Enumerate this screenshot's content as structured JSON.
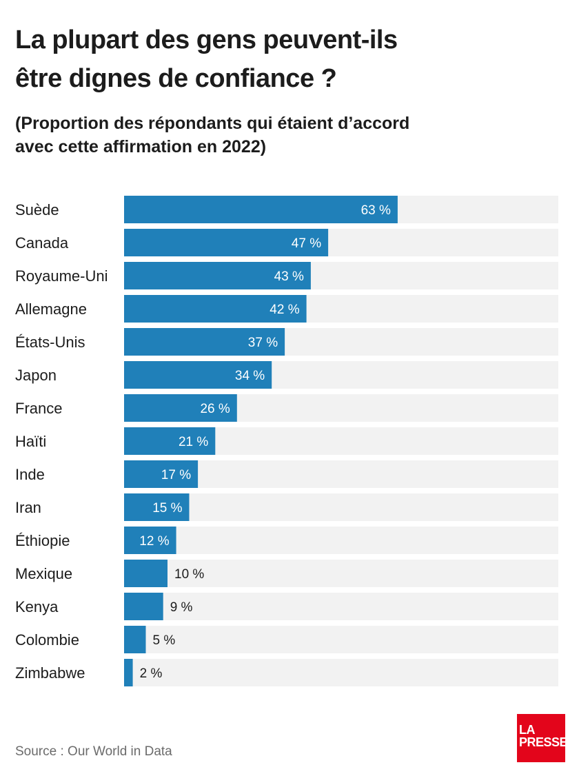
{
  "header": {
    "title_line1": "La plupart des gens peuvent-ils",
    "title_line2": "être dignes de confiance ?",
    "subtitle_line1": "(Proportion des répondants qui étaient d’accord",
    "subtitle_line2": "avec cette affirmation en 2022)"
  },
  "footer": {
    "source": "Source : Our World in Data",
    "logo_line1": "LA",
    "logo_line2": "PRESSE"
  },
  "colors": {
    "bar": "#2080b9",
    "track": "#f2f2f2",
    "logo": "#e3051b"
  },
  "chart_data": {
    "type": "bar",
    "orientation": "horizontal",
    "title": "La plupart des gens peuvent-ils être dignes de confiance ?",
    "subtitle": "(Proportion des répondants qui étaient d’accord avec cette affirmation en 2022)",
    "categories": [
      "Suède",
      "Canada",
      "Royaume-Uni",
      "Allemagne",
      "États-Unis",
      "Japon",
      "France",
      "Haïti",
      "Inde",
      "Iran",
      "Éthiopie",
      "Mexique",
      "Kenya",
      "Colombie",
      "Zimbabwe"
    ],
    "values": [
      63,
      47,
      43,
      42,
      37,
      34,
      26,
      21,
      17,
      15,
      12,
      10,
      9,
      5,
      2
    ],
    "value_labels": [
      "63 %",
      "47 %",
      "43 %",
      "42 %",
      "37 %",
      "34 %",
      "26 %",
      "21 %",
      "17 %",
      "15 %",
      "12 %",
      "10 %",
      "9 %",
      "5 %",
      "2 %"
    ],
    "xlim": [
      0,
      100
    ],
    "unit": "%",
    "grid": false,
    "legend": "none"
  }
}
